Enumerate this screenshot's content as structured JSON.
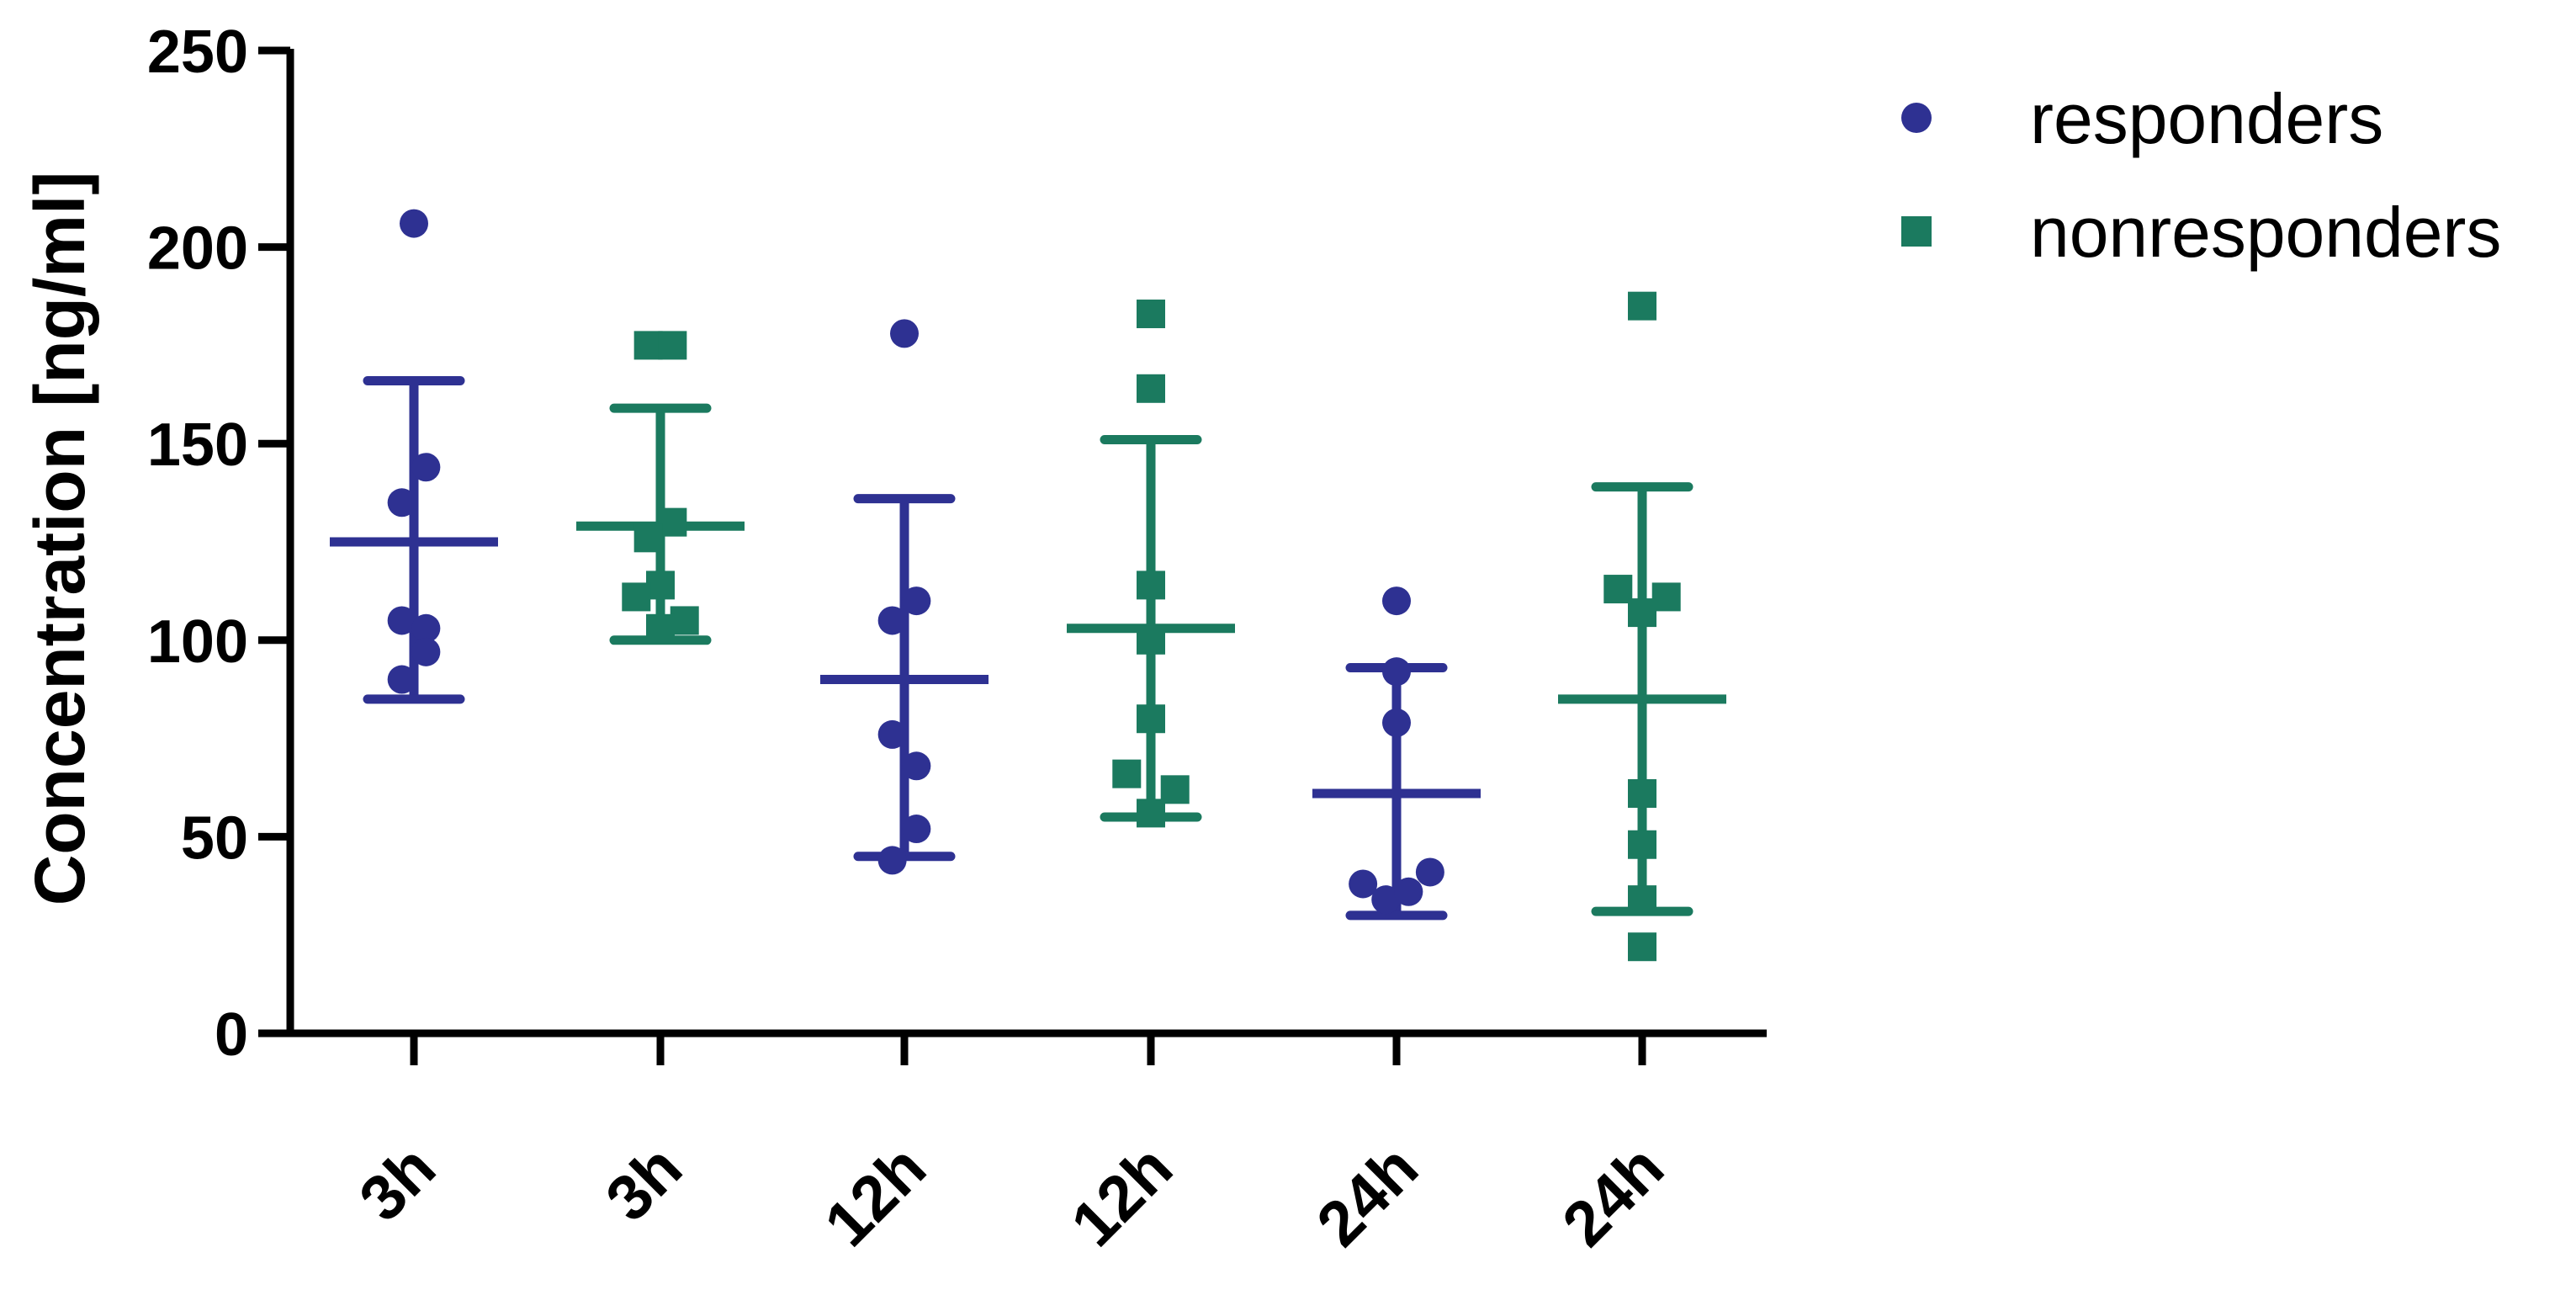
{
  "chart_data": {
    "type": "scatter",
    "ylabel": "Concentration [ng/ml]",
    "xlabel": "",
    "ylim": [
      0,
      250
    ],
    "yticks": [
      0,
      50,
      100,
      150,
      200,
      250
    ],
    "grid": false,
    "legend_position": "top-right",
    "colors": {
      "responders": "#2e3192",
      "nonresponders": "#1b7a5f"
    },
    "categories": [
      "3h",
      "3h",
      "12h",
      "12h",
      "24h",
      "24h"
    ],
    "series": [
      {
        "name": "responders",
        "marker": "circle"
      },
      {
        "name": "nonresponders",
        "marker": "square"
      }
    ],
    "groups": [
      {
        "label": "3h",
        "series": "responders",
        "mean": 125,
        "sd_low": 85,
        "sd_high": 166,
        "points": [
          [
            0.0,
            206
          ],
          [
            -0.09,
            135
          ],
          [
            0.09,
            144
          ],
          [
            -0.09,
            105
          ],
          [
            0.09,
            103
          ],
          [
            0.09,
            97
          ],
          [
            -0.09,
            90
          ]
        ]
      },
      {
        "label": "3h",
        "series": "nonresponders",
        "mean": 129,
        "sd_low": 100,
        "sd_high": 159,
        "points": [
          [
            -0.09,
            175
          ],
          [
            0.09,
            175
          ],
          [
            0.09,
            130
          ],
          [
            -0.09,
            126
          ],
          [
            0.0,
            114
          ],
          [
            -0.18,
            111
          ],
          [
            0.18,
            105
          ],
          [
            0.0,
            103
          ]
        ]
      },
      {
        "label": "12h",
        "series": "responders",
        "mean": 90,
        "sd_low": 45,
        "sd_high": 136,
        "points": [
          [
            0.0,
            178
          ],
          [
            -0.09,
            105
          ],
          [
            0.09,
            110
          ],
          [
            -0.09,
            76
          ],
          [
            0.09,
            68
          ],
          [
            0.09,
            52
          ],
          [
            -0.09,
            44
          ]
        ]
      },
      {
        "label": "12h",
        "series": "nonresponders",
        "mean": 103,
        "sd_low": 55,
        "sd_high": 151,
        "points": [
          [
            0.0,
            183
          ],
          [
            0.0,
            164
          ],
          [
            0.0,
            114
          ],
          [
            0.0,
            100
          ],
          [
            0.0,
            80
          ],
          [
            -0.18,
            66
          ],
          [
            0.18,
            62
          ],
          [
            0.0,
            56
          ]
        ]
      },
      {
        "label": "24h",
        "series": "responders",
        "mean": 61,
        "sd_low": 30,
        "sd_high": 93,
        "points": [
          [
            0.0,
            110
          ],
          [
            0.0,
            92
          ],
          [
            0.0,
            79
          ],
          [
            -0.25,
            38
          ],
          [
            0.25,
            41
          ],
          [
            -0.08,
            34
          ],
          [
            0.09,
            36
          ]
        ]
      },
      {
        "label": "24h",
        "series": "nonresponders",
        "mean": 85,
        "sd_low": 31,
        "sd_high": 139,
        "points": [
          [
            0.0,
            185
          ],
          [
            -0.18,
            113
          ],
          [
            0.18,
            111
          ],
          [
            0.0,
            107
          ],
          [
            0.0,
            61
          ],
          [
            0.0,
            48
          ],
          [
            0.0,
            34
          ],
          [
            0.0,
            22
          ]
        ]
      }
    ]
  }
}
